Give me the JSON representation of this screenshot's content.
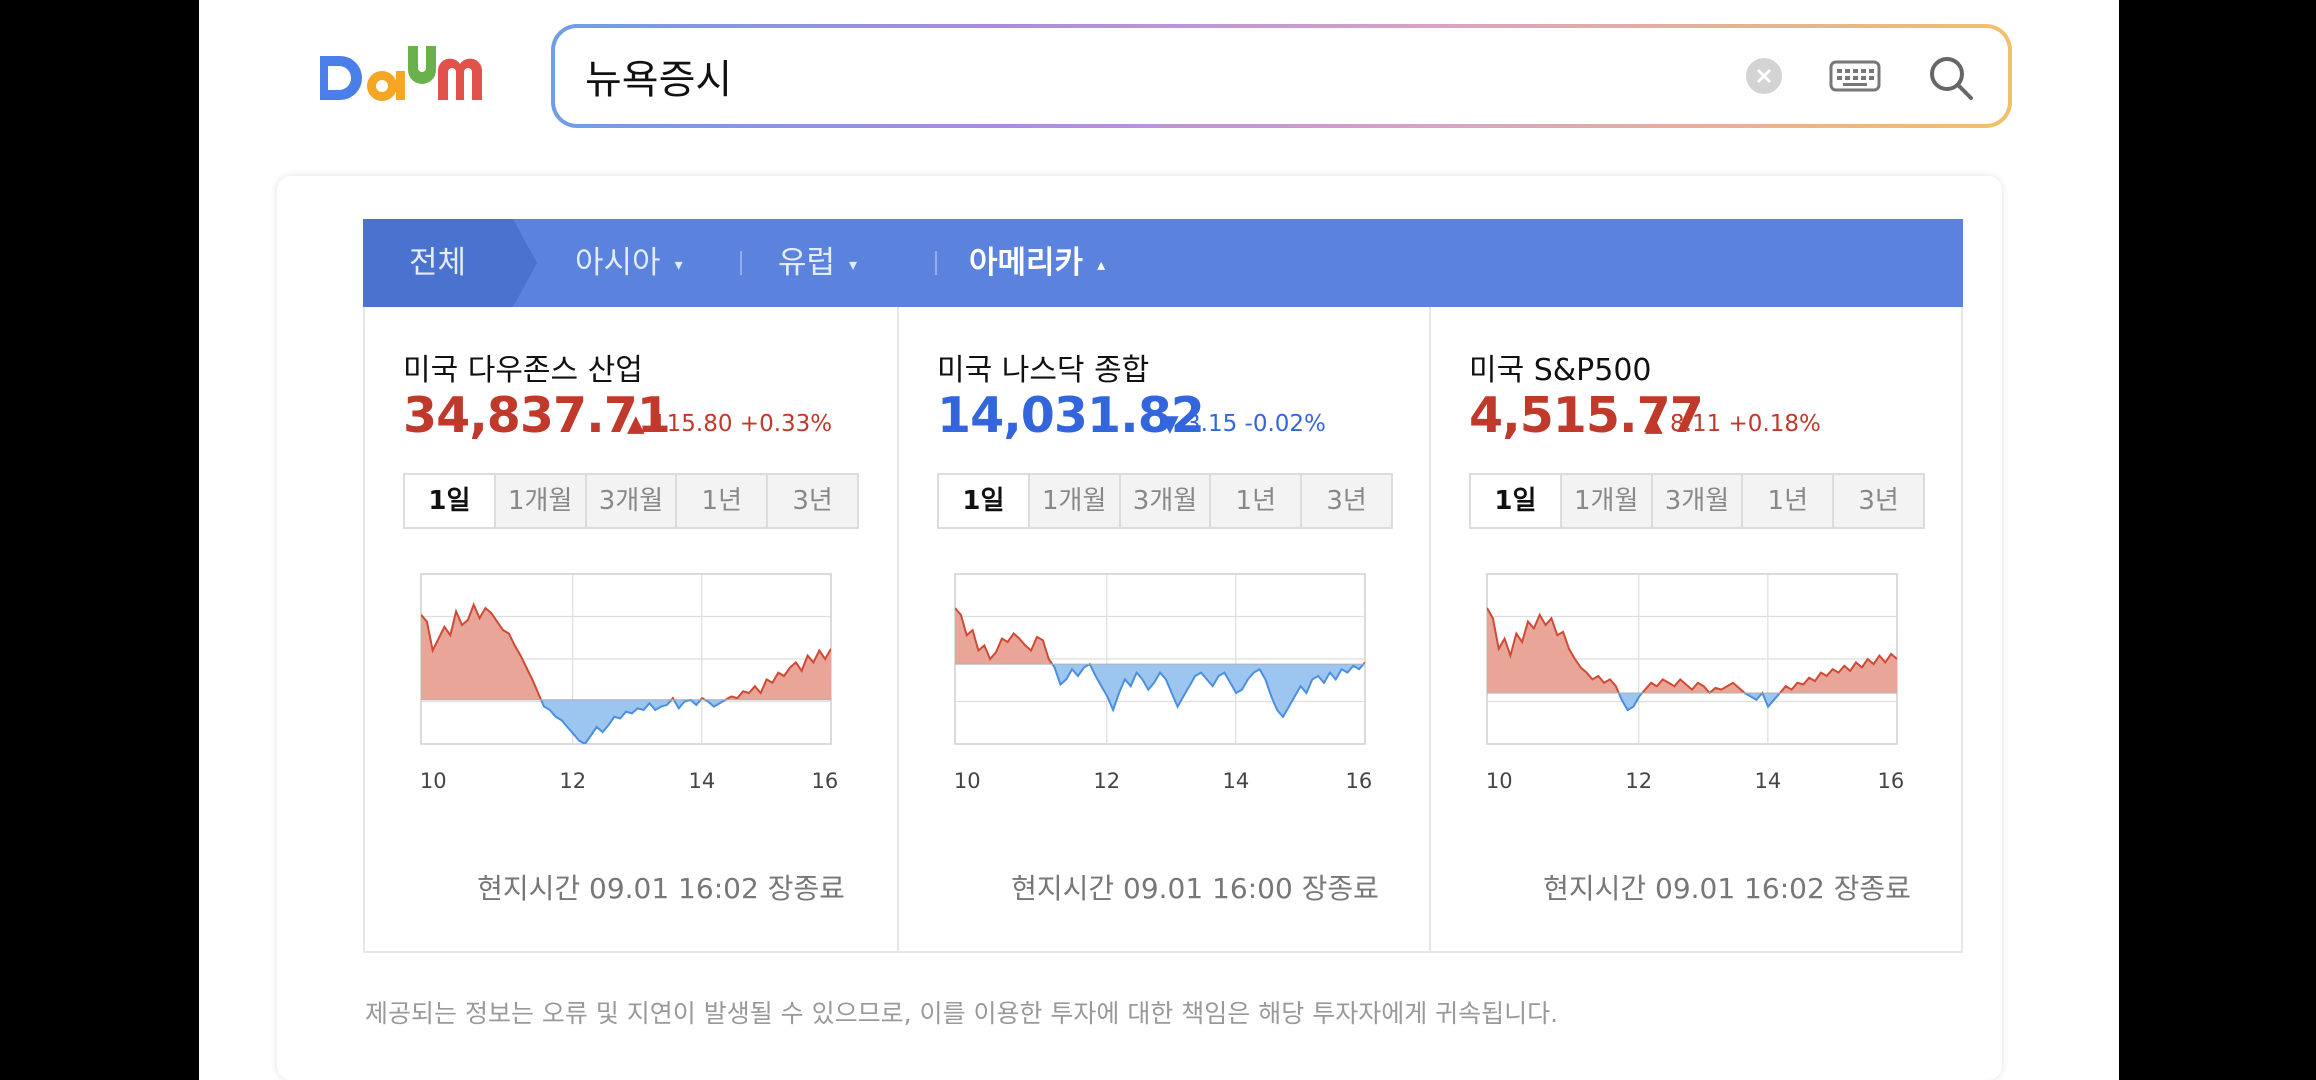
{
  "header": {
    "logo_text": "Daum",
    "search": {
      "value": "뉴욕증시",
      "placeholder": ""
    },
    "icons": [
      "clear-icon",
      "keyboard-icon",
      "search-icon"
    ]
  },
  "tabs": {
    "items": [
      {
        "label": "전체",
        "caret": ""
      },
      {
        "label": "아시아",
        "caret": "▾"
      },
      {
        "label": "유럽",
        "caret": "▾"
      },
      {
        "label": "아메리카",
        "caret": "▴"
      }
    ],
    "active": "아메리카"
  },
  "period_tabs": [
    "1일",
    "1개월",
    "3개월",
    "1년",
    "3년"
  ],
  "indices": [
    {
      "name": "미국 다우존스 산업",
      "value": "34,837.71",
      "direction": "up",
      "arrow": "▲",
      "change": "115.80 +0.33%",
      "time_note": "현지시간 09.01 16:02 장종료",
      "chart_data": {
        "type": "area",
        "x_ticks": [
          "10",
          "12",
          "14",
          "16"
        ],
        "baseline_fraction": 0.74,
        "values": [
          0.24,
          0.28,
          0.45,
          0.38,
          0.31,
          0.36,
          0.22,
          0.3,
          0.27,
          0.18,
          0.26,
          0.2,
          0.23,
          0.28,
          0.33,
          0.35,
          0.42,
          0.48,
          0.55,
          0.62,
          0.7,
          0.78,
          0.8,
          0.84,
          0.86,
          0.9,
          0.94,
          0.98,
          1.0,
          0.95,
          0.9,
          0.93,
          0.89,
          0.84,
          0.85,
          0.81,
          0.82,
          0.79,
          0.8,
          0.76,
          0.8,
          0.78,
          0.77,
          0.73,
          0.79,
          0.75,
          0.74,
          0.77,
          0.73,
          0.75,
          0.78,
          0.76,
          0.74,
          0.72,
          0.73,
          0.69,
          0.7,
          0.66,
          0.7,
          0.62,
          0.64,
          0.58,
          0.6,
          0.55,
          0.52,
          0.57,
          0.48,
          0.52,
          0.45,
          0.5,
          0.44
        ],
        "colors": {
          "above": "#e8a598",
          "below": "#9cc6ef",
          "line_up": "#d04a35",
          "line_down": "#4a8fe0"
        }
      }
    },
    {
      "name": "미국 나스닥 종합",
      "value": "14,031.82",
      "direction": "down",
      "arrow": "▼",
      "change": "3.15 -0.02%",
      "time_note": "현지시간 09.01 16:00 장종료",
      "chart_data": {
        "type": "area",
        "x_ticks": [
          "10",
          "12",
          "14",
          "16"
        ],
        "baseline_fraction": 0.53,
        "values": [
          0.2,
          0.24,
          0.36,
          0.33,
          0.45,
          0.42,
          0.5,
          0.46,
          0.38,
          0.4,
          0.35,
          0.38,
          0.42,
          0.45,
          0.37,
          0.39,
          0.5,
          0.55,
          0.65,
          0.62,
          0.56,
          0.6,
          0.55,
          0.53,
          0.6,
          0.66,
          0.72,
          0.8,
          0.7,
          0.62,
          0.66,
          0.58,
          0.62,
          0.68,
          0.64,
          0.58,
          0.62,
          0.7,
          0.78,
          0.72,
          0.66,
          0.6,
          0.58,
          0.62,
          0.66,
          0.6,
          0.58,
          0.64,
          0.7,
          0.68,
          0.62,
          0.58,
          0.56,
          0.62,
          0.72,
          0.8,
          0.84,
          0.78,
          0.72,
          0.66,
          0.7,
          0.62,
          0.6,
          0.64,
          0.58,
          0.62,
          0.56,
          0.58,
          0.54,
          0.56,
          0.52
        ],
        "colors": {
          "above": "#e8a598",
          "below": "#9cc6ef",
          "line_up": "#d04a35",
          "line_down": "#4a8fe0"
        }
      }
    },
    {
      "name": "미국 S&P500",
      "value": "4,515.77",
      "direction": "up",
      "arrow": "▲",
      "change": "8.11 +0.18%",
      "time_note": "현지시간 09.01 16:02 장종료",
      "chart_data": {
        "type": "area",
        "x_ticks": [
          "10",
          "12",
          "14",
          "16"
        ],
        "baseline_fraction": 0.7,
        "values": [
          0.2,
          0.26,
          0.44,
          0.38,
          0.48,
          0.35,
          0.4,
          0.28,
          0.32,
          0.24,
          0.3,
          0.26,
          0.36,
          0.34,
          0.44,
          0.5,
          0.55,
          0.58,
          0.62,
          0.6,
          0.64,
          0.62,
          0.66,
          0.74,
          0.8,
          0.78,
          0.72,
          0.68,
          0.64,
          0.66,
          0.62,
          0.64,
          0.66,
          0.62,
          0.65,
          0.68,
          0.64,
          0.66,
          0.7,
          0.67,
          0.68,
          0.66,
          0.64,
          0.67,
          0.7,
          0.72,
          0.74,
          0.7,
          0.78,
          0.74,
          0.7,
          0.66,
          0.68,
          0.64,
          0.65,
          0.61,
          0.63,
          0.58,
          0.6,
          0.56,
          0.58,
          0.54,
          0.57,
          0.52,
          0.55,
          0.5,
          0.53,
          0.48,
          0.52,
          0.47,
          0.5
        ],
        "colors": {
          "above": "#e8a598",
          "below": "#9cc6ef",
          "line_up": "#d04a35",
          "line_down": "#4a8fe0"
        }
      }
    }
  ],
  "disclaimer": "제공되는 정보는 오류 및 지연이 발생될 수 있으므로, 이를 이용한 투자에 대한 책임은 해당 투자자에게 귀속됩니다."
}
